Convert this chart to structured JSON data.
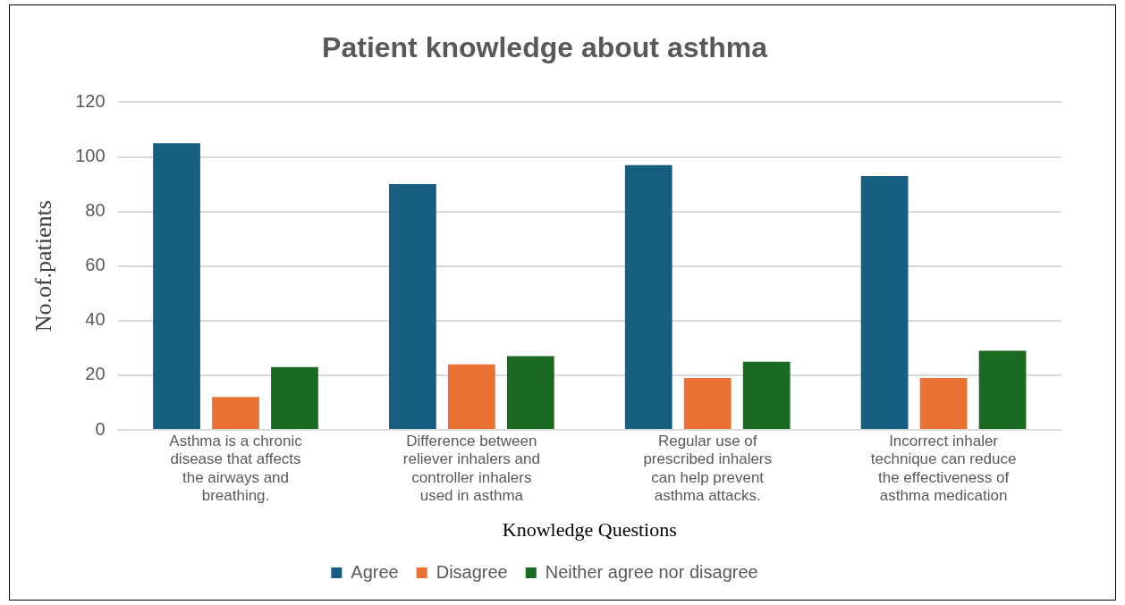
{
  "chart_data": {
    "type": "bar",
    "title": "Patient knowledge about asthma",
    "xlabel": "Knowledge Questions",
    "ylabel": "No.of.patients",
    "categories": [
      "Asthma is a chronic disease that affects the airways and breathing.",
      "Difference between reliever inhalers and controller inhalers used in asthma",
      "Regular use of prescribed inhalers can help prevent asthma attacks.",
      "Incorrect inhaler technique can reduce the effectiveness of asthma medication"
    ],
    "series": [
      {
        "name": "Agree",
        "color": "#175f80",
        "values": [
          105,
          90,
          97,
          93
        ]
      },
      {
        "name": "Disagree",
        "color": "#e97132",
        "values": [
          12,
          24,
          19,
          19
        ]
      },
      {
        "name": "Neither agree nor disagree",
        "color": "#1b6a22",
        "values": [
          23,
          27,
          25,
          29
        ]
      }
    ],
    "ylim": [
      0,
      120
    ],
    "yticks": [
      0,
      20,
      40,
      60,
      80,
      100,
      120
    ],
    "grid": "y",
    "legend": "bottom"
  }
}
